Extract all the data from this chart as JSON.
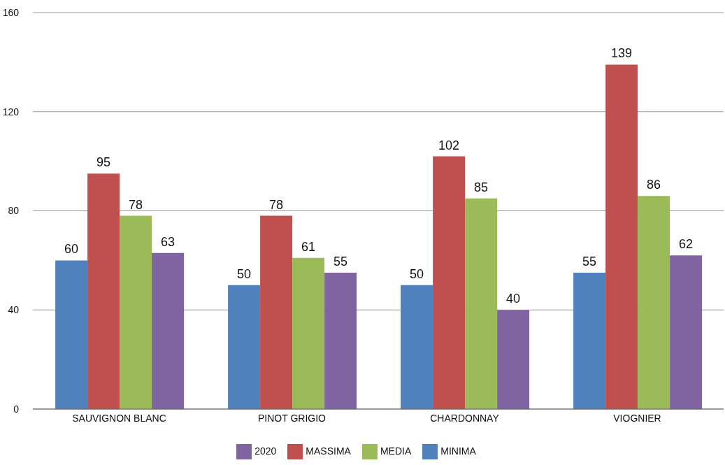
{
  "chart_data": {
    "type": "bar",
    "categories": [
      "SAUVIGNON BLANC",
      "PINOT GRIGIO",
      "CHARDONNAY",
      "VIOGNIER"
    ],
    "series": [
      {
        "name": "MINIMA",
        "color": "#4f81bd",
        "values": [
          60,
          50,
          50,
          55
        ]
      },
      {
        "name": "MASSIMA",
        "color": "#c0504d",
        "values": [
          95,
          78,
          102,
          139
        ]
      },
      {
        "name": "MEDIA",
        "color": "#9bbb59",
        "values": [
          78,
          61,
          85,
          86
        ]
      },
      {
        "name": "2020",
        "color": "#8064a2",
        "values": [
          63,
          55,
          40,
          62
        ]
      }
    ],
    "ylim": [
      0,
      160
    ],
    "yticks": [
      0,
      40,
      80,
      120,
      160
    ],
    "grid": "y",
    "legend": "bottom",
    "data_labels": true
  }
}
